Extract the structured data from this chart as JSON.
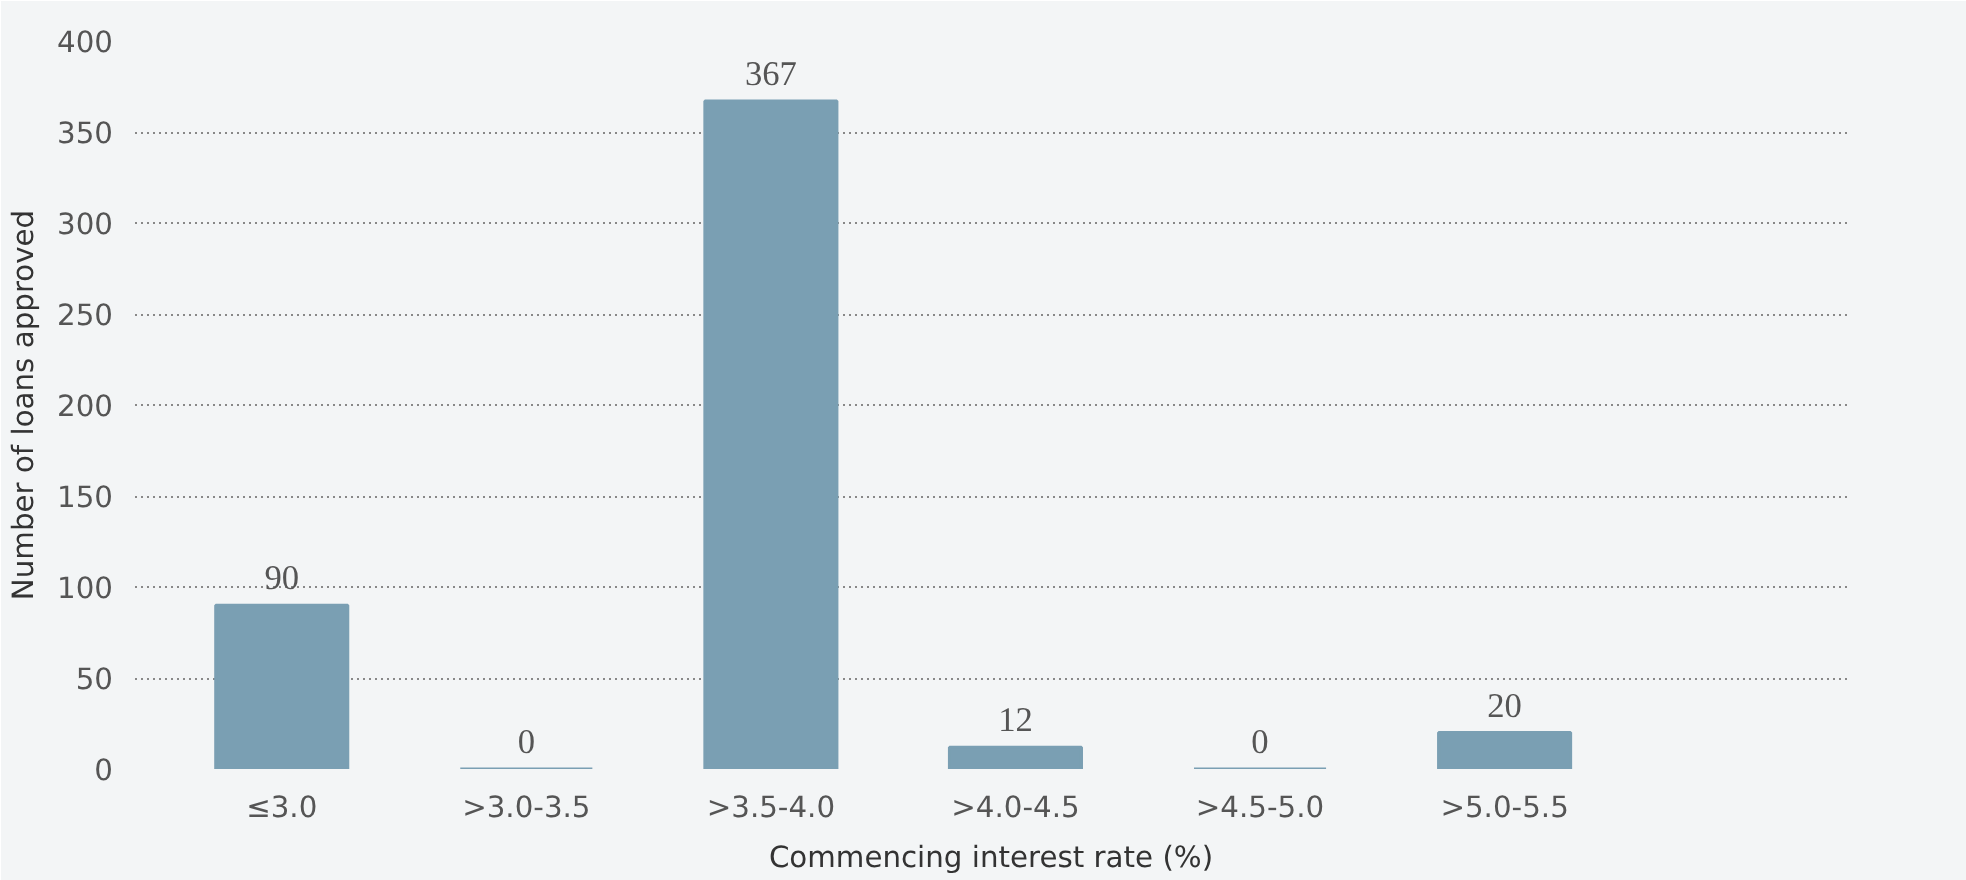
{
  "chart_data": {
    "type": "bar",
    "xlabel": "Commencing interest rate (%)",
    "ylabel": "Number of loans approved",
    "categories": [
      "≤3.0",
      ">3.0-3.5",
      ">3.5-4.0",
      ">4.0-4.5",
      ">4.5-5.0",
      ">5.0-5.5"
    ],
    "values": [
      90,
      0,
      367,
      12,
      0,
      20
    ],
    "color": "#7a9fb3",
    "data_labels": true,
    "ylim": [
      0,
      400
    ],
    "yticks": [
      0,
      50,
      100,
      150,
      200,
      250,
      300,
      350,
      400
    ],
    "grid": "y"
  }
}
